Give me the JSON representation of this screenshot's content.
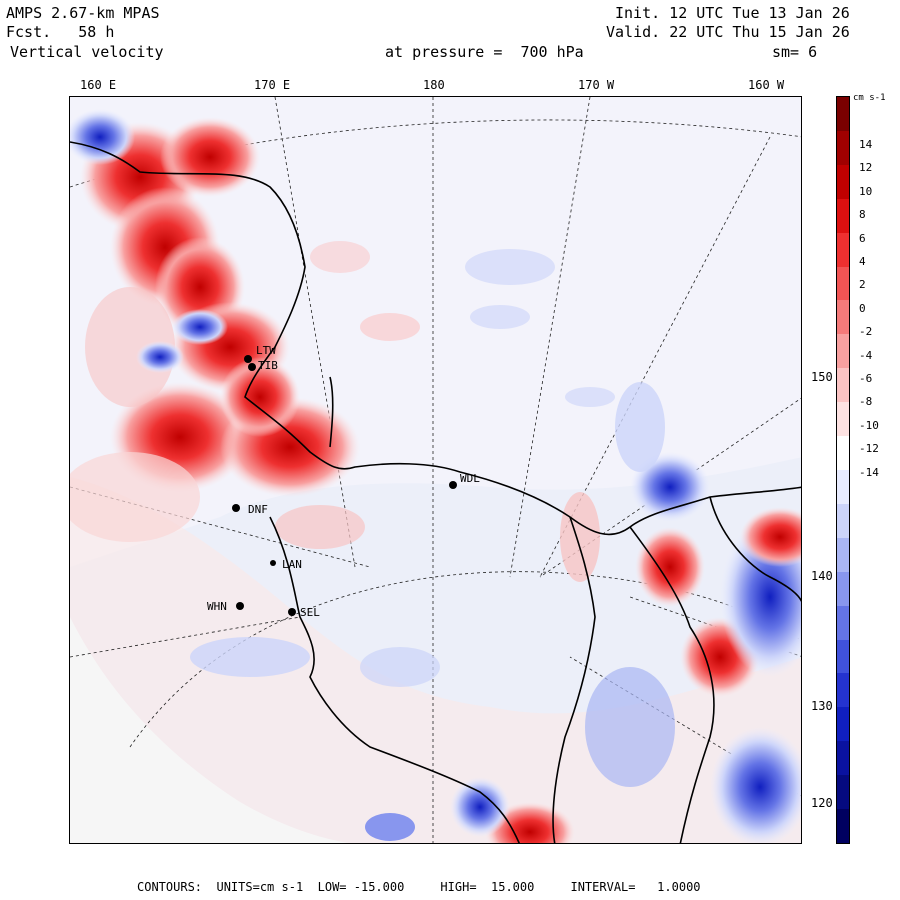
{
  "header": {
    "model": "AMPS 2.67-km MPAS",
    "forecast": "Fcst.   58 h",
    "variable": "Vertical velocity",
    "init": "Init. 12 UTC Tue 13 Jan 26",
    "valid": "Valid. 22 UTC Thu 15 Jan 26",
    "level": "at pressure =  700 hPa",
    "smoothing": "sm= 6"
  },
  "axes": {
    "top_ticks": [
      "160 E",
      "170 E",
      "180",
      "170 W",
      "160 W"
    ],
    "right_ticks": [
      "150 W",
      "140 W",
      "130 W",
      "120 W"
    ]
  },
  "stations": [
    "LTW",
    "TIB",
    "DNF",
    "LAN",
    "WHN",
    "SEL",
    "WDL"
  ],
  "colorbar": {
    "units_label": "cm s-1",
    "labels": [
      "14",
      "12",
      "10",
      "8",
      "6",
      "4",
      "2",
      "0",
      "-2",
      "-4",
      "-6",
      "-8",
      "-10",
      "-12",
      "-14"
    ],
    "colors": [
      "#7a0000",
      "#a00000",
      "#c00000",
      "#dd1010",
      "#ee3030",
      "#f25454",
      "#f57a7a",
      "#f8a0a0",
      "#fbc4c4",
      "#fde2e2",
      "#ffffff",
      "#e8ecff",
      "#ccd4fa",
      "#aab6f4",
      "#8896ee",
      "#6474e6",
      "#4052dc",
      "#2433d0",
      "#101fc0",
      "#0a12a0",
      "#050a80",
      "#000060"
    ]
  },
  "footer": {
    "text": "CONTOURS:  UNITS=cm s-1  LOW= -15.000     HIGH=  15.000     INTERVAL=   1.0000"
  }
}
